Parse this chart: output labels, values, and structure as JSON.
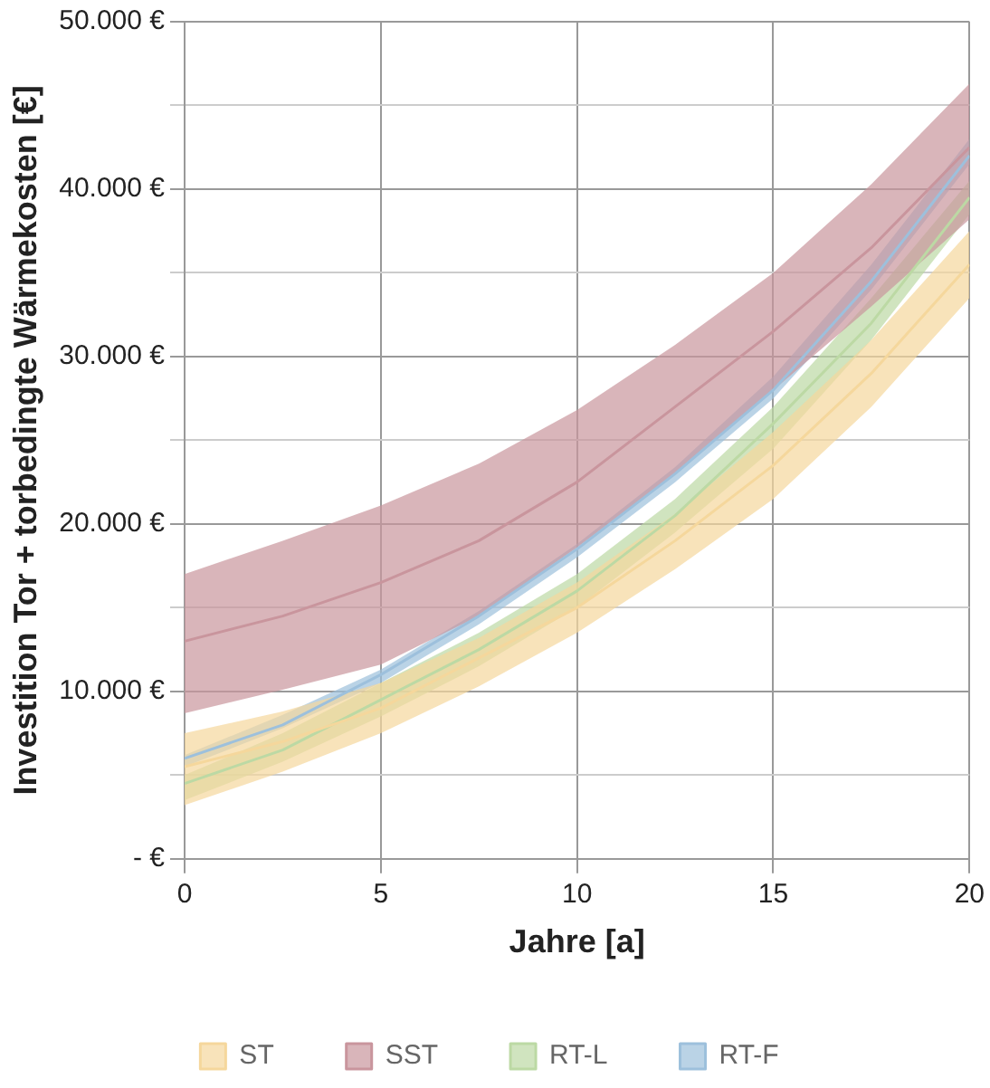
{
  "chart_data": {
    "type": "line",
    "xlabel": "Jahre [a]",
    "ylabel": "Investition Tor + torbedingte Wärmekosten [€]",
    "x": [
      0,
      2.5,
      5,
      7.5,
      10,
      12.5,
      15,
      17.5,
      20
    ],
    "series": [
      {
        "name": "ST",
        "color": "#f5d79c",
        "values": [
          5500,
          7000,
          9000,
          12000,
          15000,
          19000,
          23500,
          29000,
          35500
        ],
        "lower": [
          3200,
          5200,
          7500,
          10300,
          13500,
          17300,
          21500,
          27000,
          33500
        ],
        "upper": [
          7500,
          8800,
          10500,
          13200,
          16500,
          20600,
          25500,
          31000,
          37500
        ]
      },
      {
        "name": "SST",
        "color": "#c9959d",
        "values": [
          13000,
          14500,
          16500,
          19000,
          22500,
          27000,
          31500,
          36500,
          42500
        ],
        "lower": [
          8700,
          10100,
          11600,
          14500,
          18600,
          23000,
          28000,
          33000,
          38200
        ],
        "upper": [
          17000,
          19000,
          21100,
          23600,
          26800,
          30700,
          35000,
          40300,
          46300
        ]
      },
      {
        "name": "RT-L",
        "color": "#bcd9a4",
        "values": [
          4500,
          6500,
          9500,
          12500,
          16000,
          20500,
          26000,
          32000,
          39500
        ],
        "lower": [
          3500,
          5800,
          8500,
          11500,
          15000,
          19500,
          24500,
          31000,
          38500
        ],
        "upper": [
          5000,
          7500,
          10500,
          13500,
          17000,
          21500,
          27000,
          33500,
          40500
        ]
      },
      {
        "name": "RT-F",
        "color": "#9dc0dc",
        "values": [
          6000,
          8000,
          11000,
          14500,
          18500,
          23000,
          28000,
          34500,
          42000
        ],
        "lower": [
          5500,
          7800,
          10500,
          14000,
          18000,
          22500,
          27500,
          34000,
          41500
        ],
        "upper": [
          6200,
          8600,
          11300,
          14800,
          18800,
          23400,
          28800,
          35500,
          43000
        ]
      }
    ],
    "xlim": [
      0,
      20
    ],
    "xticks": [
      0,
      5,
      10,
      15,
      20
    ],
    "ylim": [
      0,
      50000
    ],
    "yticks": [
      {
        "value": 0,
        "label": "- €"
      },
      {
        "value": 5000,
        "label": null
      },
      {
        "value": 10000,
        "label": "10.000 €"
      },
      {
        "value": 15000,
        "label": null
      },
      {
        "value": 20000,
        "label": "20.000 €"
      },
      {
        "value": 25000,
        "label": null
      },
      {
        "value": 30000,
        "label": "30.000 €"
      },
      {
        "value": 35000,
        "label": null
      },
      {
        "value": 40000,
        "label": "40.000 €"
      },
      {
        "value": 45000,
        "label": null
      },
      {
        "value": 50000,
        "label": "50.000 €"
      }
    ],
    "grid": true,
    "legend": "bottom",
    "marker": "none",
    "line_style": "solid"
  }
}
